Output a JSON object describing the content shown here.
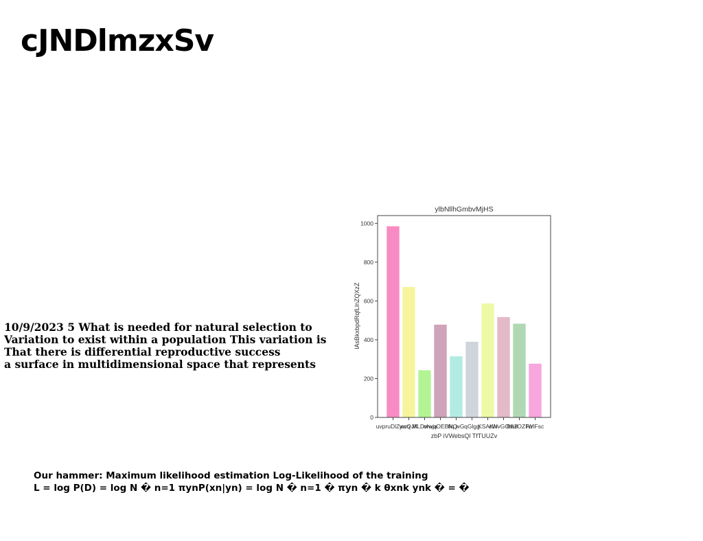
{
  "page": {
    "title": "cJNDlmzxSv"
  },
  "body": {
    "lines": [
      "10/9/2023 5 What is needed for natural selection to",
      "Variation to exist within a population This variation is",
      "That there is differential reproductive success",
      "a surface in multidimensional space that represents"
    ]
  },
  "formula": {
    "line1": "Our hammer: Maximum likelihood estimation Log-Likelihood of the training",
    "line2": "L = log P(D) = log N � n=1 πynP(xn|yn) = log N � n=1 � πyn � k θxnk ynk � = �"
  },
  "chart_data": {
    "type": "bar",
    "title": "ylbNllhGmbvMjHS",
    "xlabel": "zbP iVWebsQl TfTUUZv",
    "ylabel": "lAsBkxbpdRqfLlnZQXzZ",
    "categories": [
      "uvpruDlZywo",
      "wcQJK",
      "MLDwwja",
      "ohxqOEBNQ",
      "tlq wG",
      "qGlgg",
      "KSAKH",
      "cWvGOmB",
      "BfLrOZFu",
      "lWlFsc"
    ],
    "values": [
      985,
      672,
      243,
      478,
      315,
      390,
      587,
      517,
      483,
      277
    ],
    "colors": [
      "#f98bc4",
      "#f6f59d",
      "#b4f393",
      "#cfa3b9",
      "#b3ebe3",
      "#d0d5dc",
      "#edf9a5",
      "#e4bac8",
      "#b0d9b3",
      "#f7a6de"
    ],
    "ylim": [
      0,
      1040
    ],
    "yticks": [
      0,
      200,
      400,
      600,
      800,
      1000
    ],
    "grid": false
  }
}
